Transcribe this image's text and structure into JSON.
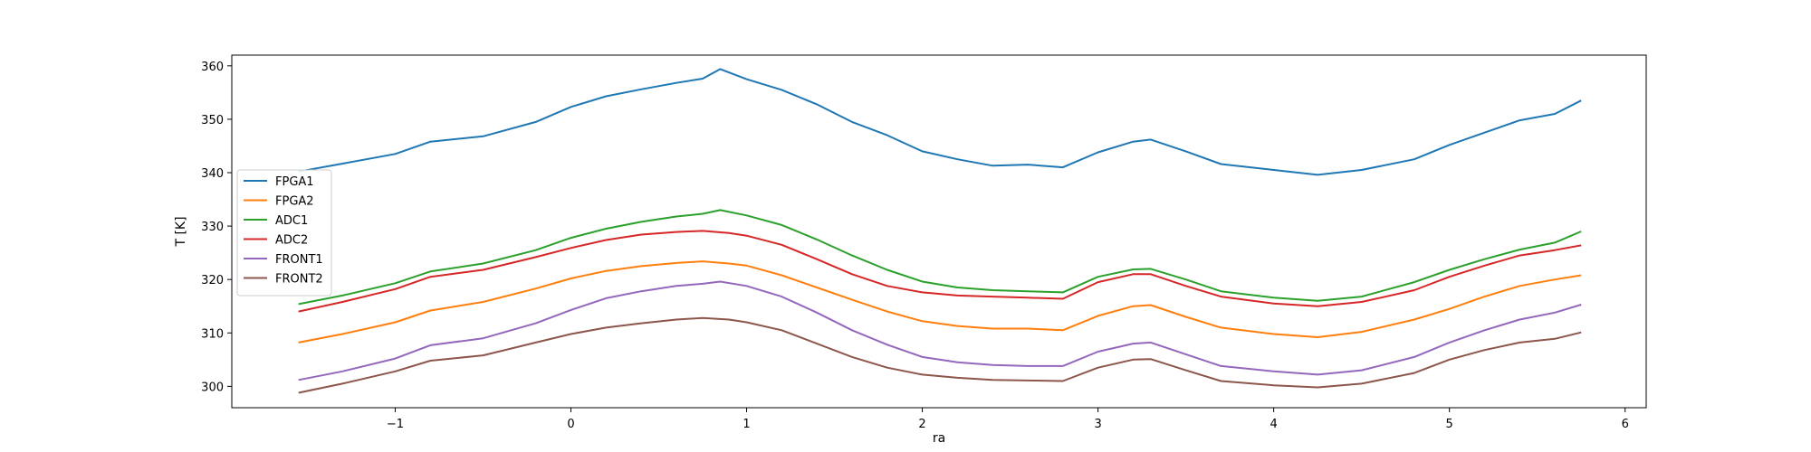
{
  "chart_data": {
    "type": "line",
    "xlabel": "ra",
    "ylabel": "T [K]",
    "xlim": [
      -1.93,
      6.12
    ],
    "ylim": [
      296,
      362
    ],
    "xticks": [
      -1,
      0,
      1,
      2,
      3,
      4,
      5,
      6
    ],
    "xtick_labels": [
      "−1",
      "0",
      "1",
      "2",
      "3",
      "4",
      "5",
      "6"
    ],
    "yticks": [
      300,
      310,
      320,
      330,
      340,
      350,
      360
    ],
    "ytick_labels": [
      "300",
      "310",
      "320",
      "330",
      "340",
      "350",
      "360"
    ],
    "grid": false,
    "legend_position": "center-left",
    "series": [
      {
        "name": "FPGA1",
        "color": "#1f77b4",
        "x": [
          -1.55,
          -1.3,
          -1.0,
          -0.8,
          -0.5,
          -0.2,
          0.0,
          0.2,
          0.4,
          0.6,
          0.75,
          0.85,
          1.0,
          1.2,
          1.4,
          1.6,
          1.8,
          2.0,
          2.2,
          2.4,
          2.6,
          2.8,
          3.0,
          3.2,
          3.3,
          3.5,
          3.7,
          4.0,
          4.25,
          4.5,
          4.8,
          5.0,
          5.2,
          5.4,
          5.6,
          5.75
        ],
        "y": [
          340.2,
          341.7,
          343.5,
          345.8,
          346.8,
          349.5,
          352.3,
          354.3,
          355.6,
          356.8,
          357.6,
          359.4,
          357.5,
          355.5,
          352.8,
          349.5,
          347.0,
          344.0,
          342.5,
          341.3,
          341.5,
          341.0,
          343.8,
          345.8,
          346.2,
          344.0,
          341.6,
          340.5,
          339.6,
          340.5,
          342.5,
          345.2,
          347.5,
          349.8,
          351.0,
          353.5
        ]
      },
      {
        "name": "FPGA2",
        "color": "#ff7f0e",
        "x": [
          -1.55,
          -1.3,
          -1.0,
          -0.8,
          -0.5,
          -0.2,
          0.0,
          0.2,
          0.4,
          0.6,
          0.75,
          0.9,
          1.0,
          1.2,
          1.4,
          1.6,
          1.8,
          2.0,
          2.2,
          2.4,
          2.6,
          2.8,
          3.0,
          3.2,
          3.3,
          3.5,
          3.7,
          4.0,
          4.25,
          4.5,
          4.8,
          5.0,
          5.2,
          5.4,
          5.6,
          5.75
        ],
        "y": [
          308.2,
          309.8,
          312.0,
          314.2,
          315.8,
          318.3,
          320.2,
          321.6,
          322.5,
          323.1,
          323.4,
          323.0,
          322.6,
          320.8,
          318.5,
          316.2,
          314.0,
          312.2,
          311.3,
          310.8,
          310.8,
          310.5,
          313.2,
          315.0,
          315.2,
          313.0,
          311.0,
          309.8,
          309.2,
          310.2,
          312.5,
          314.5,
          316.8,
          318.8,
          320.0,
          320.8
        ]
      },
      {
        "name": "ADC1",
        "color": "#2ca02c",
        "x": [
          -1.55,
          -1.3,
          -1.0,
          -0.8,
          -0.5,
          -0.2,
          0.0,
          0.2,
          0.4,
          0.6,
          0.75,
          0.85,
          1.0,
          1.2,
          1.4,
          1.6,
          1.8,
          2.0,
          2.2,
          2.4,
          2.6,
          2.8,
          3.0,
          3.2,
          3.3,
          3.5,
          3.7,
          4.0,
          4.25,
          4.5,
          4.8,
          5.0,
          5.2,
          5.4,
          5.6,
          5.75
        ],
        "y": [
          315.4,
          317.0,
          319.3,
          321.5,
          323.0,
          325.5,
          327.8,
          329.5,
          330.8,
          331.8,
          332.3,
          333.0,
          332.0,
          330.2,
          327.5,
          324.5,
          321.8,
          319.6,
          318.5,
          318.0,
          317.8,
          317.6,
          320.5,
          321.9,
          322.0,
          320.0,
          317.8,
          316.6,
          316.0,
          316.8,
          319.5,
          321.8,
          323.8,
          325.6,
          326.9,
          329.0
        ]
      },
      {
        "name": "ADC2",
        "color": "#d62728",
        "x": [
          -1.55,
          -1.3,
          -1.0,
          -0.8,
          -0.5,
          -0.2,
          0.0,
          0.2,
          0.4,
          0.6,
          0.75,
          0.9,
          1.0,
          1.2,
          1.4,
          1.6,
          1.8,
          2.0,
          2.2,
          2.4,
          2.6,
          2.8,
          3.0,
          3.2,
          3.3,
          3.5,
          3.7,
          4.0,
          4.25,
          4.5,
          4.8,
          5.0,
          5.2,
          5.4,
          5.6,
          5.75
        ],
        "y": [
          314.0,
          315.8,
          318.2,
          320.5,
          321.8,
          324.2,
          325.9,
          327.4,
          328.4,
          328.9,
          329.1,
          328.7,
          328.2,
          326.5,
          323.8,
          321.0,
          318.8,
          317.6,
          317.0,
          316.8,
          316.6,
          316.4,
          319.5,
          321.0,
          321.0,
          318.8,
          316.8,
          315.5,
          315.0,
          315.8,
          318.0,
          320.5,
          322.6,
          324.5,
          325.5,
          326.4
        ]
      },
      {
        "name": "FRONT1",
        "color": "#9467bd",
        "x": [
          -1.55,
          -1.3,
          -1.0,
          -0.8,
          -0.5,
          -0.2,
          0.0,
          0.2,
          0.4,
          0.6,
          0.75,
          0.85,
          1.0,
          1.2,
          1.4,
          1.6,
          1.8,
          2.0,
          2.2,
          2.4,
          2.6,
          2.8,
          3.0,
          3.2,
          3.3,
          3.5,
          3.7,
          4.0,
          4.25,
          4.5,
          4.8,
          5.0,
          5.2,
          5.4,
          5.6,
          5.75
        ],
        "y": [
          301.2,
          302.8,
          305.2,
          307.7,
          309.0,
          311.8,
          314.3,
          316.5,
          317.8,
          318.8,
          319.2,
          319.6,
          318.8,
          316.8,
          313.8,
          310.5,
          307.8,
          305.5,
          304.5,
          304.0,
          303.8,
          303.8,
          306.5,
          308.0,
          308.2,
          306.0,
          303.8,
          302.8,
          302.2,
          303.0,
          305.5,
          308.2,
          310.5,
          312.5,
          313.8,
          315.3
        ]
      },
      {
        "name": "FRONT2",
        "color": "#8c564b",
        "x": [
          -1.55,
          -1.3,
          -1.0,
          -0.8,
          -0.5,
          -0.2,
          0.0,
          0.2,
          0.4,
          0.6,
          0.75,
          0.9,
          1.0,
          1.2,
          1.4,
          1.6,
          1.8,
          2.0,
          2.2,
          2.4,
          2.6,
          2.8,
          3.0,
          3.2,
          3.3,
          3.5,
          3.7,
          4.0,
          4.25,
          4.5,
          4.8,
          5.0,
          5.2,
          5.4,
          5.6,
          5.75
        ],
        "y": [
          298.8,
          300.5,
          302.8,
          304.8,
          305.8,
          308.2,
          309.8,
          311.0,
          311.8,
          312.5,
          312.8,
          312.5,
          312.0,
          310.5,
          308.0,
          305.5,
          303.5,
          302.2,
          301.6,
          301.2,
          301.1,
          301.0,
          303.5,
          305.0,
          305.1,
          303.0,
          301.0,
          300.2,
          299.8,
          300.5,
          302.5,
          305.0,
          306.8,
          308.2,
          308.9,
          310.1
        ]
      }
    ]
  }
}
